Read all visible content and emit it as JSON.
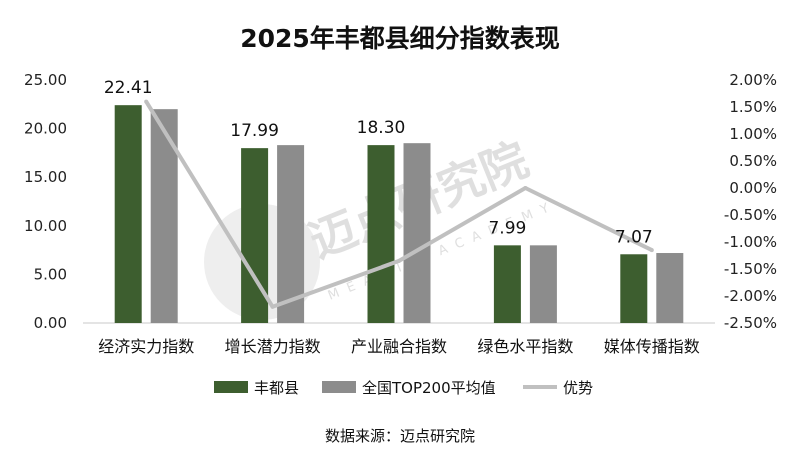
{
  "chart_data": {
    "type": "bar",
    "title": "2025年丰都县细分指数表现",
    "categories": [
      "经济实力指数",
      "增长潜力指数",
      "产业融合指数",
      "绿色水平指数",
      "媒体传播指数"
    ],
    "series": [
      {
        "name": "丰都县",
        "type": "bar",
        "axis": "left",
        "color": "#3d5e2f",
        "values": [
          22.41,
          17.99,
          18.3,
          7.99,
          7.07
        ],
        "labels": [
          "22.41",
          "17.99",
          "18.30",
          "7.99",
          "7.07"
        ]
      },
      {
        "name": "全国TOP200平均值",
        "type": "bar",
        "axis": "left",
        "color": "#8c8c8c",
        "values": [
          22.0,
          18.3,
          18.5,
          7.99,
          7.2
        ]
      },
      {
        "name": "优势",
        "type": "line",
        "axis": "right",
        "color": "#c0c0c0",
        "values": [
          1.6,
          -2.2,
          -1.35,
          0.0,
          -1.15
        ]
      }
    ],
    "y_left": {
      "min": 0,
      "max": 25,
      "ticks": [
        "0.00",
        "5.00",
        "10.00",
        "15.00",
        "20.00",
        "25.00"
      ]
    },
    "y_right": {
      "min": -2.5,
      "max": 2.0,
      "ticks": [
        "-2.50%",
        "-2.00%",
        "-1.50%",
        "-1.00%",
        "-0.50%",
        "0.00%",
        "0.50%",
        "1.00%",
        "1.50%",
        "2.00%"
      ]
    },
    "legend_position": "bottom",
    "grid": false
  },
  "watermark": {
    "text": "迈点研究院",
    "sub": "MEADIN ACADEMY"
  },
  "source": "数据来源：迈点研究院"
}
